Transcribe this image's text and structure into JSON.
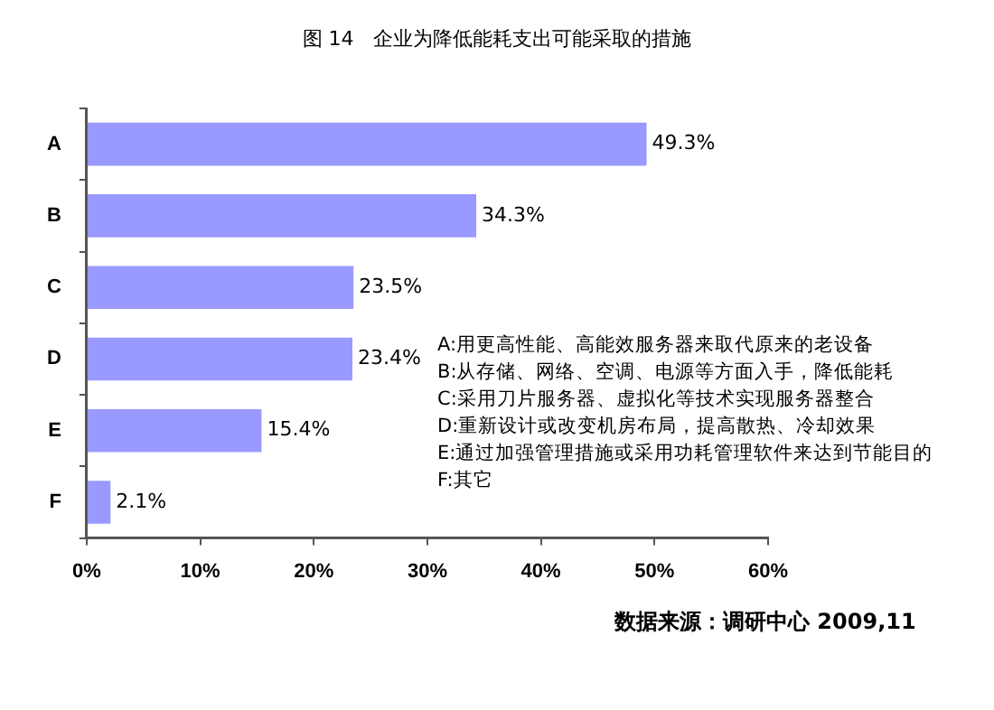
{
  "chart_data": {
    "type": "bar",
    "orientation": "horizontal",
    "title": "图 14　企业为降低能耗支出可能采取的措施",
    "categories": [
      "A",
      "B",
      "C",
      "D",
      "E",
      "F"
    ],
    "values": [
      49.3,
      34.3,
      23.5,
      23.4,
      15.4,
      2.1
    ],
    "value_labels": [
      "49.3%",
      "34.3%",
      "23.5%",
      "23.4%",
      "15.4%",
      "2.1%"
    ],
    "color": "#9999ff",
    "xlim": [
      0,
      60
    ],
    "xticks": [
      {
        "value": 0,
        "label": "0%"
      },
      {
        "value": 10,
        "label": "10%"
      },
      {
        "value": 20,
        "label": "20%"
      },
      {
        "value": 30,
        "label": "30%"
      },
      {
        "value": 40,
        "label": "40%"
      },
      {
        "value": 50,
        "label": "50%"
      },
      {
        "value": 60,
        "label": "60%"
      }
    ],
    "grid": false,
    "legend": false,
    "annotations": [
      "A:用更高性能、高能效服务器来取代原来的老设备",
      "B:从存储、网络、空调、电源等方面入手，降低能耗",
      "C:采用刀片服务器、虚拟化等技术实现服务器整合",
      "D:重新设计或改变机房布局，提高散热、冷却效果",
      "E:通过加强管理措施或采用功耗管理软件来达到节能目的",
      "F:其它",
      "数据来源：调研中心 2009,11"
    ]
  }
}
